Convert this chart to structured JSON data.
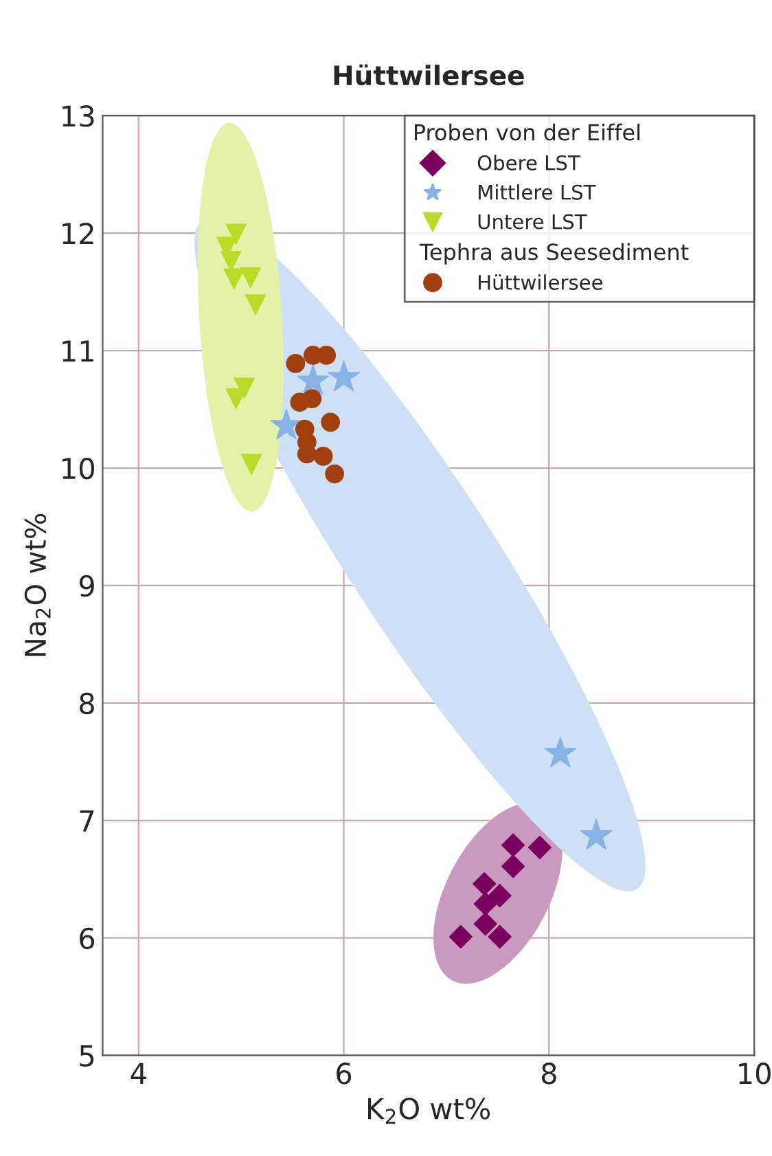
{
  "chart_data": {
    "type": "scatter",
    "title": "Hüttwilersee",
    "xlabel": "K$_{2}$O wt%",
    "ylabel": "Na$_{2}$O wt%",
    "legend_title": "Proben von der Eiffel",
    "annotations": [
      "Tephra aus Seesediment"
    ],
    "xlim": [
      3.65,
      10
    ],
    "ylim": [
      5,
      13
    ],
    "xticks": [
      4,
      6,
      8,
      10
    ],
    "yticks": [
      5,
      6,
      7,
      8,
      9,
      10,
      11,
      12,
      13
    ],
    "grid": true,
    "legend": "top right",
    "series": [
      {
        "name": "Obere LST",
        "color": "#7a0060",
        "marker": "diamond",
        "x": [
          7.65,
          7.91,
          7.65,
          7.37,
          7.52,
          7.38,
          7.38,
          7.14,
          7.52
        ],
        "values": [
          6.79,
          6.77,
          6.61,
          6.46,
          6.36,
          6.29,
          6.12,
          6.01,
          6.01
        ]
      },
      {
        "name": "Mittlere LST",
        "color": "#86b2e6",
        "marker": "star",
        "x": [
          5.7,
          6.0,
          5.44,
          8.11,
          8.46
        ],
        "values": [
          10.74,
          10.77,
          10.36,
          7.57,
          6.87
        ]
      },
      {
        "name": "Untere LST",
        "color": "#b8dc28",
        "marker": "triangle",
        "x": [
          4.95,
          4.86,
          4.9,
          4.93,
          5.09,
          5.14,
          5.03,
          4.95,
          5.1
        ],
        "values": [
          11.99,
          11.88,
          11.76,
          11.61,
          11.62,
          11.39,
          10.68,
          10.59,
          10.03
        ]
      },
      {
        "name": "Hüttwilersee",
        "color": "#a0400f",
        "marker": "circle",
        "x": [
          5.53,
          5.7,
          5.83,
          5.57,
          5.69,
          5.87,
          5.62,
          5.64,
          5.64,
          5.8,
          5.91
        ],
        "values": [
          10.89,
          10.96,
          10.96,
          10.56,
          10.59,
          10.39,
          10.33,
          10.22,
          10.12,
          10.1,
          9.95
        ]
      }
    ]
  }
}
